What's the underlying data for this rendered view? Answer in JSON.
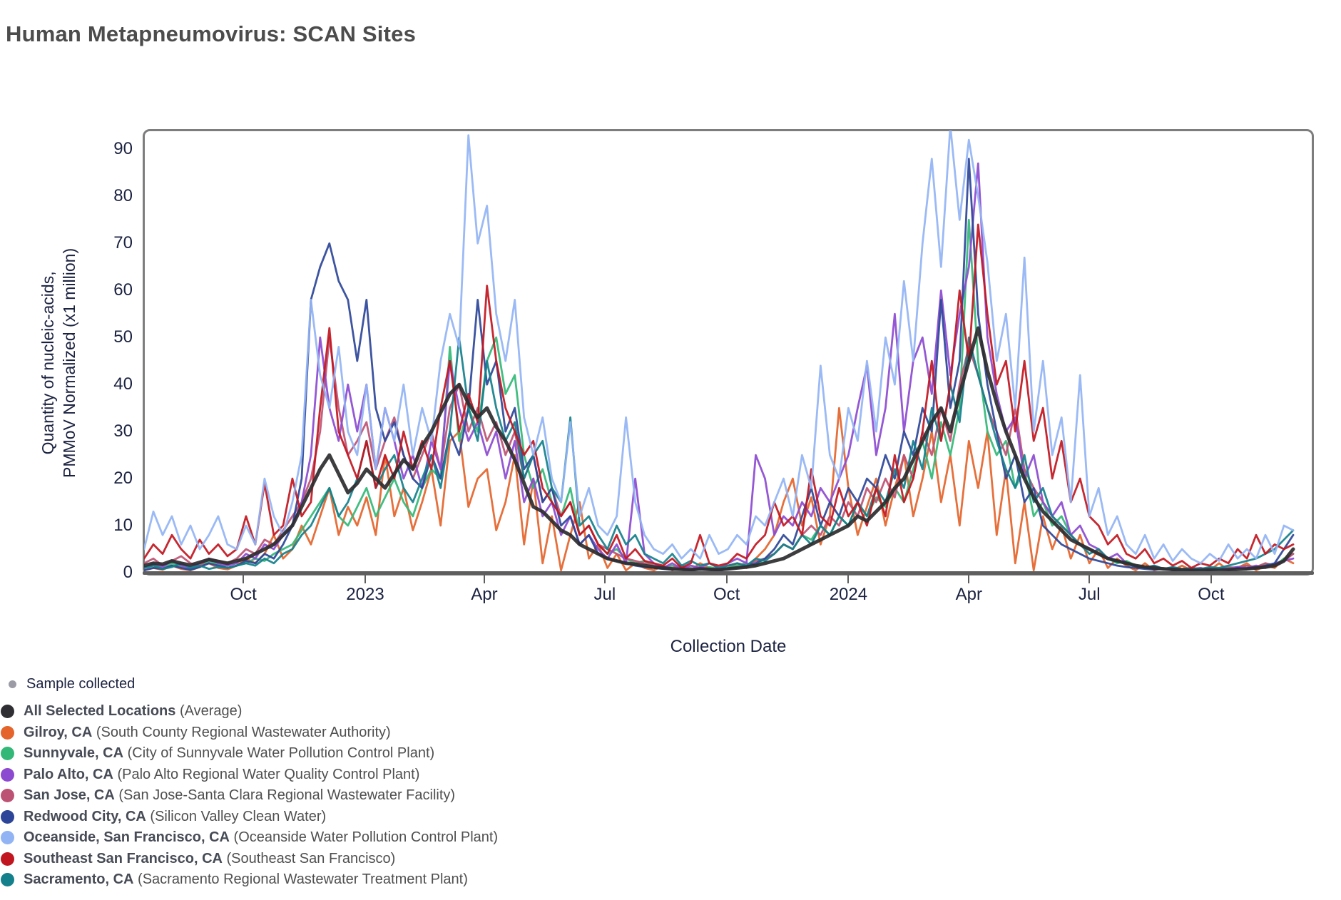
{
  "title": "Human Metapneumovirus: SCAN Sites",
  "chart_data": {
    "type": "line",
    "title": "Human Metapneumovirus: SCAN Sites",
    "xlabel": "Collection Date",
    "ylabel_line1": "Quantity of nucleic-acids,",
    "ylabel_line2": "PMMoV Normalized (x1 million)",
    "x_unit": "weeks since 2022-07-18",
    "x_domain_weeks": [
      0,
      126
    ],
    "ylim": [
      0,
      94
    ],
    "grid": false,
    "legend_position": "bottom-left",
    "y_ticks": [
      0,
      10,
      20,
      30,
      40,
      50,
      60,
      70,
      80,
      90
    ],
    "x_ticks": [
      {
        "label": "Oct",
        "week": 10.71
      },
      {
        "label": "2023",
        "week": 23.86
      },
      {
        "label": "Apr",
        "week": 36.71
      },
      {
        "label": "Jul",
        "week": 49.71
      },
      {
        "label": "Oct",
        "week": 62.86
      },
      {
        "label": "2024",
        "week": 76.0
      },
      {
        "label": "Apr",
        "week": 89.0
      },
      {
        "label": "Jul",
        "week": 102.0
      },
      {
        "label": "Oct",
        "week": 115.14
      }
    ],
    "series": [
      {
        "name": "Gilroy, CA",
        "color": "#e4642b",
        "width": 2.8,
        "values": [
          0.5,
          1,
          0.6,
          1.5,
          0.8,
          0.5,
          1.2,
          2,
          1,
          0.7,
          1.5,
          3,
          2,
          4,
          8,
          3,
          5,
          10,
          6,
          12,
          18,
          8,
          14,
          10,
          16,
          8,
          25,
          12,
          18,
          9,
          15,
          22,
          10,
          28,
          30,
          14,
          20,
          22,
          9,
          15,
          25,
          6,
          20,
          2,
          12,
          0.5,
          8,
          15,
          3,
          6,
          1,
          4,
          0.5,
          2,
          1,
          0.5,
          1.5,
          0.5,
          1,
          0.5,
          2,
          1,
          0.5,
          1,
          2,
          1,
          3,
          5,
          8,
          15,
          20,
          10,
          16,
          6,
          12,
          35,
          18,
          8,
          14,
          20,
          10,
          18,
          25,
          12,
          20,
          30,
          15,
          25,
          10,
          28,
          18,
          30,
          8,
          22,
          2,
          15,
          0.5,
          12,
          5,
          10,
          3,
          8,
          2,
          5,
          1,
          3,
          1.5,
          0.5,
          2,
          0.5,
          1,
          0.5,
          1.5,
          0.5,
          1,
          0.5,
          2,
          0.5,
          1,
          2,
          0.5,
          1.5,
          1,
          3,
          2
        ]
      },
      {
        "name": "Sunnyvale, CA",
        "color": "#33b877",
        "width": 2.8,
        "values": [
          1,
          1.5,
          0.8,
          2,
          1.2,
          0.6,
          1.5,
          2.5,
          1.8,
          1,
          1.5,
          2,
          3,
          2.5,
          4,
          5,
          6,
          9,
          12,
          15,
          18,
          12,
          10,
          14,
          18,
          12,
          16,
          20,
          15,
          12,
          18,
          22,
          20,
          48,
          28,
          35,
          30,
          45,
          50,
          38,
          42,
          25,
          18,
          22,
          15,
          12,
          18,
          8,
          10,
          6,
          4,
          5,
          3,
          2,
          2.5,
          1.5,
          1,
          1.5,
          0.8,
          1,
          0.6,
          1.2,
          0.8,
          1,
          1.5,
          2,
          1.5,
          3,
          4,
          6,
          5,
          8,
          7,
          10,
          8,
          12,
          10,
          15,
          12,
          16,
          14,
          18,
          15,
          22,
          28,
          20,
          32,
          25,
          35,
          75,
          45,
          30,
          25,
          28,
          18,
          22,
          12,
          15,
          10,
          12,
          8,
          6,
          5,
          4,
          3,
          2,
          2.5,
          1.5,
          1,
          1.2,
          0.8,
          1,
          0.6,
          0.8,
          0.6,
          1,
          0.8,
          1.2,
          1,
          1.5,
          1,
          2,
          1.5,
          3,
          4
        ]
      },
      {
        "name": "San Jose, CA",
        "color": "#bd5374",
        "width": 2.8,
        "values": [
          2,
          3,
          1.5,
          2.5,
          3.5,
          2,
          1.5,
          3,
          2.5,
          2,
          3,
          5,
          4,
          7,
          6,
          9,
          12,
          15,
          20,
          30,
          50,
          35,
          25,
          28,
          32,
          22,
          28,
          33,
          25,
          20,
          25,
          30,
          22,
          35,
          40,
          30,
          35,
          28,
          32,
          25,
          30,
          20,
          25,
          15,
          18,
          12,
          15,
          8,
          10,
          6,
          5,
          4,
          3,
          2.5,
          2,
          1.5,
          1.2,
          1,
          1.5,
          0.8,
          1.2,
          0.8,
          1,
          1.5,
          2,
          1.5,
          2.5,
          3,
          4,
          6,
          5,
          8,
          10,
          8,
          12,
          10,
          15,
          12,
          18,
          15,
          20,
          16,
          25,
          20,
          30,
          25,
          35,
          28,
          40,
          48,
          42,
          35,
          30,
          25,
          35,
          22,
          18,
          15,
          12,
          10,
          8,
          6,
          5,
          4,
          3,
          2.5,
          2,
          1.5,
          1.2,
          1,
          0.8,
          1,
          0.6,
          0.8,
          0.6,
          1,
          0.8,
          1,
          1.2,
          1.5,
          1.2,
          2,
          1.5,
          2.5,
          4
        ]
      },
      {
        "name": "Palo Alto, CA",
        "color": "#8c4ad0",
        "width": 2.8,
        "values": [
          1,
          2,
          1.2,
          2.5,
          1.5,
          1,
          2,
          3,
          2,
          1.5,
          2,
          4,
          3,
          6,
          5,
          8,
          10,
          15,
          25,
          50,
          35,
          28,
          40,
          30,
          40,
          22,
          35,
          28,
          20,
          25,
          18,
          28,
          22,
          45,
          35,
          28,
          32,
          25,
          30,
          20,
          28,
          15,
          20,
          12,
          15,
          8,
          12,
          6,
          8,
          5,
          3,
          6,
          2,
          20,
          4,
          2,
          1,
          2,
          0.8,
          1.5,
          1,
          2,
          1,
          2,
          3,
          2,
          25,
          20,
          8,
          12,
          10,
          15,
          12,
          18,
          15,
          20,
          25,
          35,
          44,
          25,
          35,
          55,
          30,
          45,
          50,
          38,
          60,
          42,
          55,
          65,
          87,
          50,
          38,
          30,
          33,
          20,
          25,
          15,
          12,
          15,
          8,
          10,
          6,
          5,
          3,
          4,
          2,
          1.5,
          1,
          1.5,
          0.8,
          1,
          0.6,
          0.8,
          1,
          0.6,
          1,
          0.8,
          1.2,
          1,
          1.5,
          1,
          2,
          2.5,
          3
        ]
      },
      {
        "name": "Redwood City, CA",
        "color": "#2c4598",
        "width": 2.8,
        "values": [
          0.5,
          1,
          0.8,
          1.5,
          1,
          0.6,
          1.2,
          2,
          1.5,
          1,
          1.5,
          2.5,
          2,
          4,
          3,
          6,
          10,
          20,
          58,
          65,
          70,
          62,
          58,
          45,
          58,
          35,
          28,
          32,
          25,
          20,
          18,
          25,
          20,
          30,
          25,
          35,
          58,
          40,
          45,
          30,
          35,
          22,
          25,
          15,
          18,
          10,
          12,
          6,
          8,
          4,
          3,
          2.5,
          2,
          1.5,
          1.2,
          1,
          0.8,
          0.6,
          0.8,
          0.5,
          0.8,
          0.6,
          0.5,
          0.8,
          1,
          1.5,
          2,
          3,
          5,
          8,
          6,
          12,
          18,
          10,
          15,
          12,
          18,
          15,
          20,
          18,
          25,
          20,
          30,
          25,
          35,
          30,
          58,
          35,
          45,
          88,
          55,
          40,
          30,
          20,
          25,
          15,
          18,
          10,
          8,
          6,
          5,
          4,
          3,
          2.5,
          2,
          1.5,
          1.2,
          1,
          0.8,
          0.6,
          0.8,
          0.5,
          0.6,
          0.5,
          0.6,
          0.5,
          0.8,
          0.6,
          1,
          0.8,
          1,
          1.5,
          2,
          5,
          8
        ]
      },
      {
        "name": "Sacramento, CA",
        "color": "#13808b",
        "width": 2.8,
        "values": [
          1,
          1.5,
          0.8,
          1.2,
          2,
          1,
          1.5,
          0.8,
          1.2,
          1,
          1.5,
          2,
          1.5,
          3,
          2,
          4,
          5,
          8,
          10,
          14,
          18,
          12,
          15,
          20,
          28,
          18,
          22,
          25,
          18,
          15,
          20,
          25,
          18,
          30,
          50,
          35,
          28,
          45,
          35,
          28,
          32,
          20,
          25,
          28,
          18,
          15,
          33,
          10,
          12,
          8,
          5,
          10,
          6,
          8,
          4,
          3,
          2,
          4,
          1.5,
          2.5,
          1.5,
          2,
          1,
          1.5,
          2,
          1.5,
          3,
          2.5,
          4,
          6,
          5,
          8,
          6,
          10,
          8,
          12,
          10,
          15,
          12,
          18,
          15,
          22,
          18,
          28,
          22,
          35,
          28,
          40,
          32,
          50,
          42,
          35,
          28,
          22,
          18,
          25,
          15,
          18,
          12,
          10,
          8,
          6,
          4,
          5,
          3,
          2.5,
          2,
          1.5,
          1,
          1.5,
          0.8,
          1.2,
          0.8,
          1,
          0.8,
          1.2,
          1,
          1.5,
          2,
          2.5,
          3,
          4,
          5,
          7,
          9
        ]
      },
      {
        "name": "Southeast San Francisco, CA",
        "color": "#c1161f",
        "width": 2.8,
        "values": [
          3,
          6,
          4,
          8,
          5,
          3,
          7,
          4,
          6,
          3.5,
          5,
          12,
          6,
          19,
          8,
          10,
          20,
          12,
          15,
          35,
          52,
          30,
          25,
          20,
          28,
          18,
          25,
          20,
          30,
          22,
          28,
          22,
          35,
          45,
          30,
          38,
          32,
          61,
          45,
          35,
          30,
          25,
          28,
          18,
          15,
          12,
          15,
          8,
          10,
          6,
          4,
          8,
          3,
          5,
          2.5,
          2,
          1.5,
          3,
          1,
          2,
          8,
          2,
          1.5,
          2,
          4,
          3,
          6,
          8,
          15,
          10,
          12,
          8,
          22,
          12,
          10,
          18,
          12,
          15,
          10,
          18,
          12,
          25,
          15,
          20,
          30,
          45,
          28,
          40,
          60,
          45,
          74,
          55,
          40,
          45,
          30,
          45,
          28,
          35,
          20,
          28,
          15,
          20,
          12,
          10,
          6,
          8,
          4,
          3,
          5,
          2,
          3,
          1.5,
          2.5,
          1,
          2,
          1.5,
          3,
          2,
          5,
          3,
          8,
          4,
          6,
          5,
          6
        ]
      },
      {
        "name": "Oceanside, San Francisco, CA",
        "color": "#92b4f4",
        "width": 2.8,
        "values": [
          5,
          13,
          8,
          12,
          6,
          10,
          5,
          8,
          12,
          6,
          5,
          10,
          6,
          20,
          12,
          8,
          15,
          25,
          58,
          42,
          35,
          48,
          30,
          25,
          40,
          22,
          35,
          28,
          40,
          25,
          35,
          28,
          45,
          55,
          48,
          93,
          70,
          78,
          55,
          45,
          58,
          33,
          25,
          33,
          20,
          15,
          32,
          12,
          18,
          10,
          8,
          12,
          33,
          15,
          8,
          5,
          4,
          6,
          3,
          5,
          3,
          8,
          4,
          5,
          8,
          6,
          12,
          10,
          15,
          20,
          12,
          25,
          18,
          44,
          25,
          20,
          35,
          28,
          45,
          30,
          50,
          40,
          62,
          45,
          70,
          88,
          65,
          95,
          75,
          92,
          80,
          66,
          45,
          55,
          35,
          67,
          30,
          45,
          25,
          33,
          15,
          42,
          12,
          18,
          8,
          12,
          6,
          4,
          8,
          3,
          6,
          2.5,
          5,
          3,
          2,
          4,
          2.5,
          6,
          3,
          5,
          3,
          8,
          4,
          10,
          9
        ]
      },
      {
        "name": "All Selected Locations",
        "color": "#2d2d2f",
        "width": 5,
        "values": [
          1.5,
          2,
          1.8,
          2.5,
          2,
          1.6,
          2.2,
          2.8,
          2.4,
          2,
          2.5,
          3,
          4,
          5,
          6,
          8,
          10,
          14,
          18,
          22,
          25,
          21,
          17,
          19,
          22,
          20,
          18,
          21,
          24,
          22,
          27,
          30,
          34,
          38,
          40,
          36,
          33,
          35,
          31,
          28,
          24,
          19,
          14,
          13,
          11,
          9,
          8,
          6,
          5,
          4,
          3,
          2.5,
          2,
          1.8,
          1.5,
          1.2,
          1,
          0.8,
          0.7,
          0.6,
          0.8,
          0.7,
          0.6,
          0.8,
          1,
          1.2,
          1.5,
          2,
          2.5,
          3,
          4,
          5,
          6,
          7,
          8,
          9,
          10,
          12,
          11,
          13,
          15,
          18,
          20,
          24,
          28,
          32,
          35,
          30,
          38,
          45,
          52,
          43,
          36,
          30,
          25,
          20,
          16,
          13,
          11,
          9,
          7,
          6,
          5,
          4,
          3,
          2.5,
          2,
          1.5,
          1.2,
          1,
          0.8,
          0.7,
          0.6,
          0.5,
          0.5,
          0.6,
          0.5,
          0.6,
          0.7,
          0.8,
          1,
          1.2,
          1.5,
          2.5,
          5
        ]
      }
    ]
  },
  "legend": {
    "sample": {
      "label": "Sample collected",
      "color": "#9b9ba6"
    },
    "items": [
      {
        "name": "All Selected Locations",
        "detail": " (Average)",
        "color": "#2f2f33"
      },
      {
        "name": "Gilroy, CA",
        "detail": " (South County Regional Wastewater Authority)",
        "color": "#e4642b"
      },
      {
        "name": "Sunnyvale, CA",
        "detail": " (City of Sunnyvale Water Pollution Control Plant)",
        "color": "#33b877"
      },
      {
        "name": "Palo Alto, CA",
        "detail": " (Palo Alto Regional Water Quality Control Plant)",
        "color": "#8c4ad0"
      },
      {
        "name": "San Jose, CA",
        "detail": " (San Jose-Santa Clara Regional Wastewater Facility)",
        "color": "#bd5374"
      },
      {
        "name": "Redwood City, CA",
        "detail": " (Silicon Valley Clean Water)",
        "color": "#2c4598"
      },
      {
        "name": "Oceanside, San Francisco, CA",
        "detail": " (Oceanside Water Pollution Control Plant)",
        "color": "#92b4f4"
      },
      {
        "name": "Southeast San Francisco, CA",
        "detail": " (Southeast San Francisco)",
        "color": "#c1161f"
      },
      {
        "name": "Sacramento, CA",
        "detail": " (Sacramento Regional Wastewater Treatment Plant)",
        "color": "#13808b"
      }
    ]
  }
}
